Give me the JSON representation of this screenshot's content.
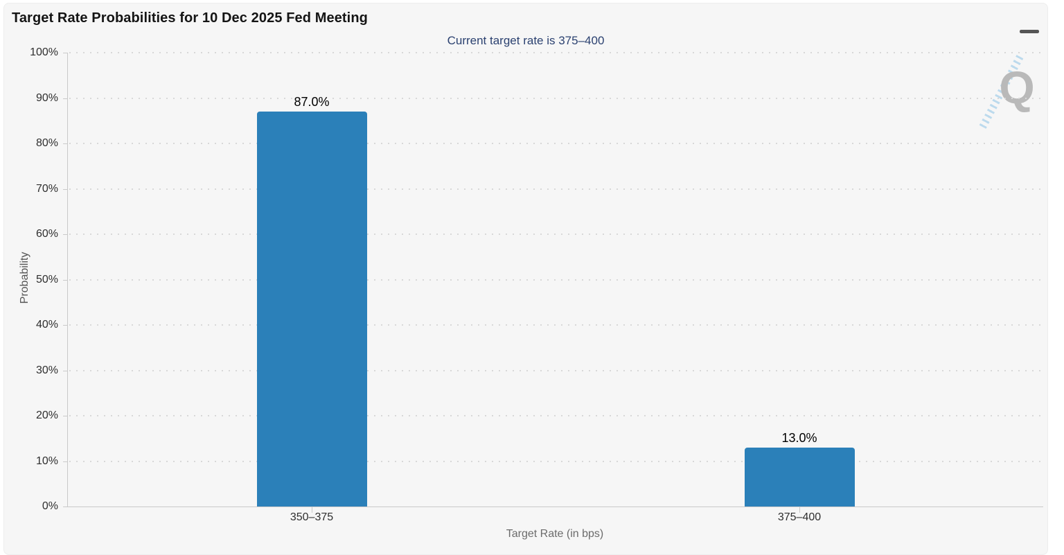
{
  "header": {
    "menu_icon": "hamburger-icon"
  },
  "watermark": {
    "letter": "Q"
  },
  "chart_data": {
    "type": "bar",
    "title": "Target Rate Probabilities for 10 Dec 2025 Fed Meeting",
    "subtitle": "Current target rate is 375–400",
    "categories": [
      "350–375",
      "375–400"
    ],
    "values": [
      87.0,
      13.0
    ],
    "value_labels": [
      "87.0%",
      "13.0%"
    ],
    "xlabel": "Target Rate (in bps)",
    "ylabel": "Probability",
    "ylim": [
      0,
      100
    ],
    "ytick_step": 10,
    "ytick_labels": [
      "0%",
      "10%",
      "20%",
      "30%",
      "40%",
      "50%",
      "60%",
      "70%",
      "80%",
      "90%",
      "100%"
    ],
    "grid": "dotted-horizontal",
    "legend": "none",
    "colors": {
      "bar": "#2b80b9",
      "subtitle": "#2b4170",
      "grid_dot": "#d8d8d8",
      "axis_line": "#c9c9c9",
      "background": "#f6f6f6",
      "watermark": "#b9b9b9",
      "watermark_stripe": "#a9d1ea"
    }
  }
}
